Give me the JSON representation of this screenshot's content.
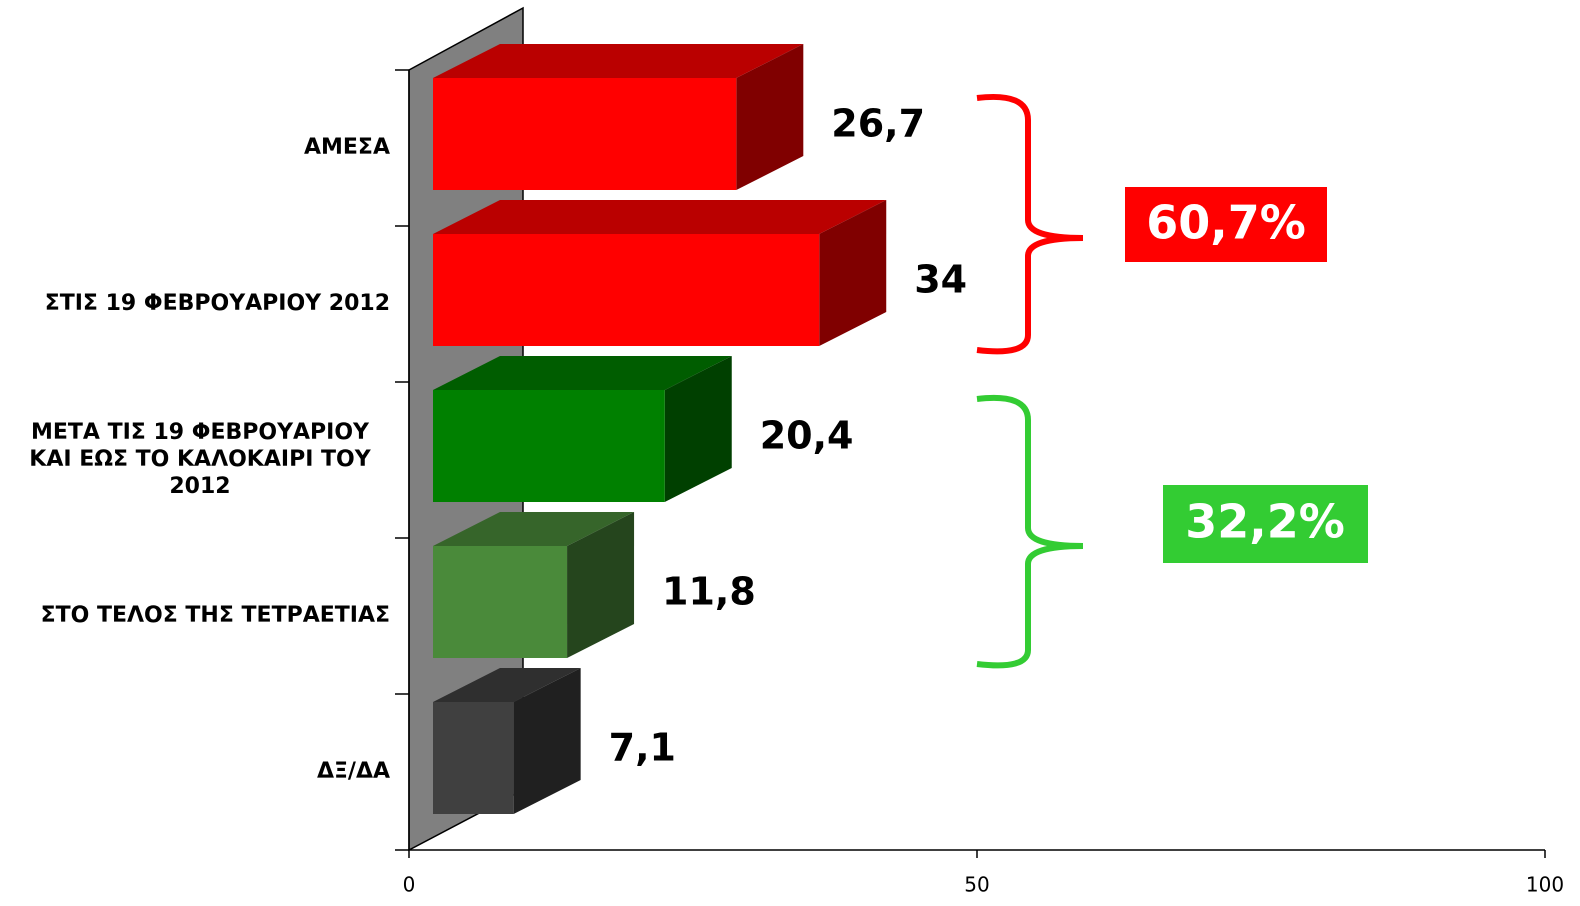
{
  "chart_data": {
    "type": "bar3d_horizontal",
    "categories": [
      "ΑΜΕΣΑ",
      "ΣΤΙΣ 19 ΦΕΒΡΟΥΑΡΙΟΥ 2012",
      "ΜΕΤΑ ΤΙΣ 19 ΦΕΒΡΟΥΑΡΙΟΥ ΚΑΙ ΕΩΣ ΤΟ ΚΑΛΟΚΑΙΡΙ ΤΟΥ 2012",
      "ΣΤΟ ΤΕΛΟΣ ΤΗΣ ΤΕΤΡΑΕΤΙΑΣ",
      "ΔΞ/ΔΑ"
    ],
    "values": [
      26.7,
      34,
      20.4,
      11.8,
      7.1
    ],
    "value_labels": [
      "26,7",
      "34",
      "20,4",
      "11,8",
      "7,1"
    ],
    "colors": [
      "#ff0000",
      "#ff0000",
      "#008000",
      "#4a8a3a",
      "#404040"
    ],
    "xlim": [
      0,
      100
    ],
    "xticks": [
      0,
      50,
      100
    ],
    "annotations": [
      {
        "text": "60,7%",
        "color": "#ff0000"
      },
      {
        "text": "32,2%",
        "color": "#33cc33"
      }
    ]
  }
}
